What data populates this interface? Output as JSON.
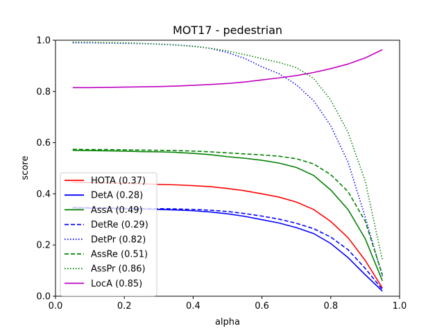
{
  "chart_data": {
    "type": "line",
    "title": "MOT17 - pedestrian",
    "xlabel": "alpha",
    "ylabel": "score",
    "xlim": [
      0.0,
      1.0
    ],
    "ylim": [
      0.0,
      1.0
    ],
    "xticks": [
      "0.0",
      "0.2",
      "0.4",
      "0.6",
      "0.8",
      "1.0"
    ],
    "yticks": [
      "0.0",
      "0.2",
      "0.4",
      "0.6",
      "0.8",
      "1.0"
    ],
    "grid": false,
    "legend_position": "lower-left",
    "x": [
      0.05,
      0.1,
      0.15,
      0.2,
      0.25,
      0.3,
      0.35,
      0.4,
      0.45,
      0.5,
      0.55,
      0.6,
      0.65,
      0.7,
      0.75,
      0.8,
      0.85,
      0.9,
      0.95
    ],
    "series": [
      {
        "name": "HOTA (0.37)",
        "color": "#ff0000",
        "dash": "solid",
        "values": [
          0.445,
          0.444,
          0.443,
          0.441,
          0.439,
          0.437,
          0.435,
          0.432,
          0.428,
          0.421,
          0.412,
          0.4,
          0.387,
          0.368,
          0.339,
          0.292,
          0.229,
          0.14,
          0.032
        ]
      },
      {
        "name": "DetA (0.28)",
        "color": "#0000ff",
        "dash": "solid",
        "values": [
          0.345,
          0.344,
          0.343,
          0.342,
          0.341,
          0.339,
          0.337,
          0.334,
          0.329,
          0.322,
          0.312,
          0.299,
          0.286,
          0.268,
          0.245,
          0.206,
          0.151,
          0.084,
          0.02
        ]
      },
      {
        "name": "AssA (0.49)",
        "color": "#008000",
        "dash": "solid",
        "values": [
          0.57,
          0.569,
          0.568,
          0.567,
          0.565,
          0.564,
          0.562,
          0.558,
          0.553,
          0.545,
          0.539,
          0.531,
          0.52,
          0.503,
          0.472,
          0.415,
          0.339,
          0.225,
          0.06
        ]
      },
      {
        "name": "DetRe (0.29)",
        "color": "#0000ff",
        "dash": "dashed",
        "values": [
          0.347,
          0.346,
          0.345,
          0.344,
          0.343,
          0.342,
          0.341,
          0.339,
          0.336,
          0.331,
          0.323,
          0.313,
          0.301,
          0.285,
          0.264,
          0.231,
          0.182,
          0.109,
          0.026
        ]
      },
      {
        "name": "DetPr (0.82)",
        "color": "#0000ff",
        "dash": "dotted",
        "values": [
          0.99,
          0.99,
          0.989,
          0.988,
          0.987,
          0.985,
          0.982,
          0.977,
          0.968,
          0.952,
          0.929,
          0.896,
          0.869,
          0.826,
          0.764,
          0.666,
          0.524,
          0.31,
          0.077
        ]
      },
      {
        "name": "AssRe (0.51)",
        "color": "#008000",
        "dash": "dashed",
        "values": [
          0.574,
          0.573,
          0.573,
          0.572,
          0.571,
          0.57,
          0.569,
          0.567,
          0.564,
          0.56,
          0.556,
          0.552,
          0.547,
          0.537,
          0.517,
          0.475,
          0.409,
          0.293,
          0.084
        ]
      },
      {
        "name": "AssPr (0.86)",
        "color": "#008000",
        "dash": "dotted",
        "values": [
          0.993,
          0.992,
          0.991,
          0.99,
          0.988,
          0.985,
          0.981,
          0.976,
          0.969,
          0.958,
          0.944,
          0.928,
          0.913,
          0.893,
          0.851,
          0.766,
          0.641,
          0.45,
          0.141
        ]
      },
      {
        "name": "LocA (0.85)",
        "color": "#bf00bf",
        "dash": "solid",
        "values": [
          0.815,
          0.815,
          0.816,
          0.817,
          0.818,
          0.819,
          0.821,
          0.824,
          0.827,
          0.831,
          0.837,
          0.845,
          0.853,
          0.862,
          0.874,
          0.889,
          0.907,
          0.931,
          0.963
        ]
      }
    ]
  }
}
